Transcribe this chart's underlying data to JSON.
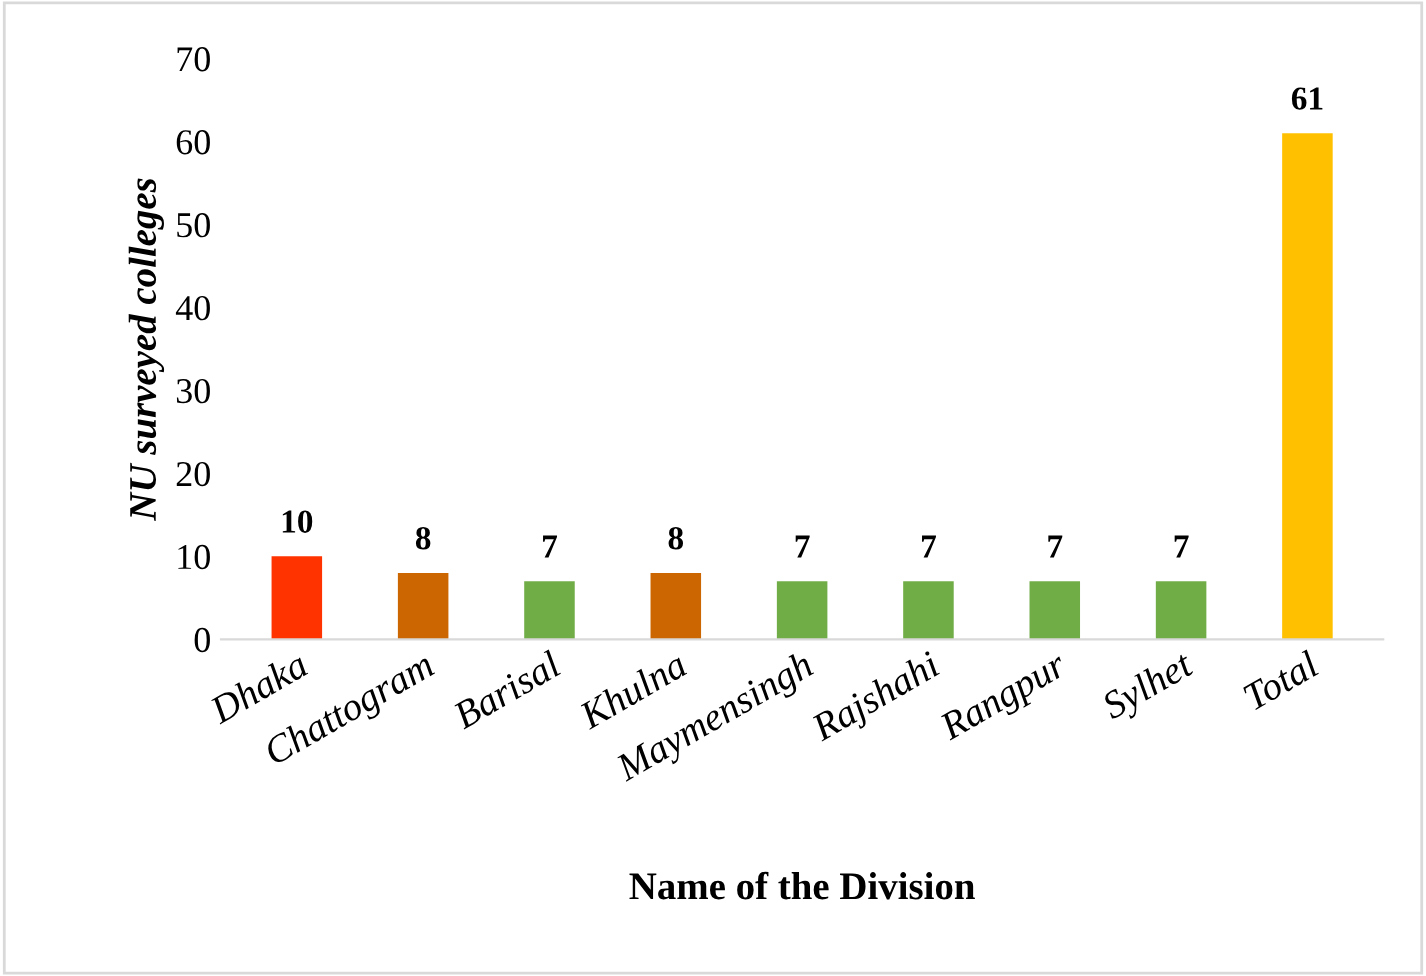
{
  "chart_data": {
    "type": "bar",
    "xlabel": "Name of the Division",
    "ylabel": "NU surveyed colleges",
    "categories": [
      "Dhaka",
      "Chattogram",
      "Barisal",
      "Khulna",
      "Maymensingh",
      "Rajshahi",
      "Rangpur",
      "Sylhet",
      "Total"
    ],
    "values": [
      10,
      8,
      7,
      8,
      7,
      7,
      7,
      7,
      61
    ],
    "colors": [
      "#ff3300",
      "#cc6600",
      "#70ad47",
      "#cc6600",
      "#70ad47",
      "#70ad47",
      "#70ad47",
      "#70ad47",
      "#ffc000"
    ],
    "ylim": [
      0,
      70
    ],
    "yticks": [
      0,
      10,
      20,
      30,
      40,
      50,
      60,
      70
    ],
    "grid": false,
    "data_labels": true
  }
}
